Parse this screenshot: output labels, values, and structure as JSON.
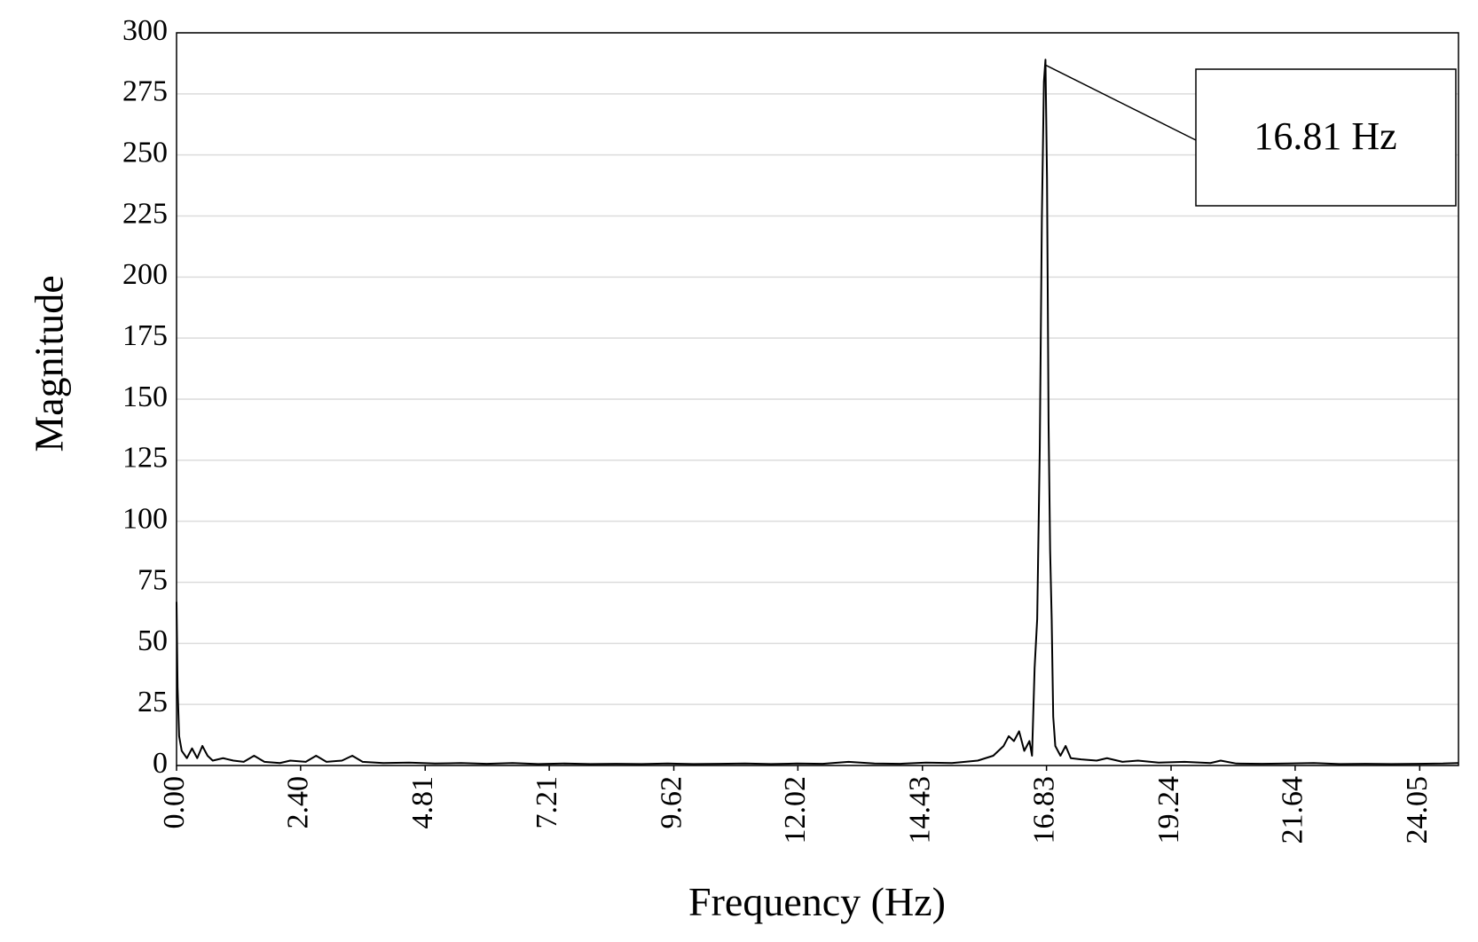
{
  "chart_data": {
    "type": "line",
    "x_label": "Frequency (Hz)",
    "y_label": "Magnitude",
    "annotation": "16.81 Hz",
    "grid": true,
    "xlim": [
      0,
      24.8
    ],
    "ylim": [
      0,
      300
    ],
    "xticks": [
      {
        "value": 0,
        "label": "0.00"
      },
      {
        "value": 2.4,
        "label": "2.40"
      },
      4.81,
      7.21,
      9.62,
      12.02,
      14.43,
      16.83,
      19.24,
      21.64,
      24.05
    ],
    "yticks": [
      0,
      25,
      50,
      75,
      100,
      125,
      150,
      175,
      200,
      225,
      250,
      275,
      300
    ],
    "x": [
      0,
      0.02,
      0.05,
      0.1,
      0.2,
      0.3,
      0.4,
      0.5,
      0.6,
      0.7,
      0.9,
      1.1,
      1.3,
      1.5,
      1.7,
      2.0,
      2.2,
      2.5,
      2.7,
      2.9,
      3.2,
      3.4,
      3.6,
      4.0,
      4.5,
      5.0,
      5.5,
      6.0,
      6.5,
      7.0,
      7.5,
      8.0,
      8.5,
      9.0,
      9.5,
      10.0,
      10.5,
      11.0,
      11.5,
      12.0,
      12.5,
      13.0,
      13.5,
      14.0,
      14.5,
      15.0,
      15.5,
      15.8,
      16.0,
      16.1,
      16.2,
      16.3,
      16.4,
      16.5,
      16.55,
      16.6,
      16.65,
      16.7,
      16.74,
      16.78,
      16.81,
      16.84,
      16.87,
      16.9,
      16.93,
      16.96,
      17.0,
      17.1,
      17.2,
      17.3,
      17.5,
      17.8,
      18.0,
      18.3,
      18.6,
      19.0,
      19.5,
      20.0,
      20.2,
      20.5,
      21.0,
      21.5,
      22.0,
      22.5,
      23.0,
      23.5,
      24.0,
      24.5,
      24.8
    ],
    "series": [
      {
        "color": "#000000",
        "values": [
          67,
          32,
          12,
          6,
          3,
          7,
          3,
          8,
          4,
          2,
          3,
          2,
          1.5,
          4,
          1.5,
          1,
          2,
          1.5,
          4,
          1.5,
          2,
          4,
          1.5,
          1,
          1.2,
          0.8,
          1,
          0.7,
          1,
          0.6,
          0.8,
          0.6,
          0.7,
          0.6,
          0.8,
          0.6,
          0.7,
          0.8,
          0.6,
          0.8,
          0.7,
          1.5,
          0.8,
          0.7,
          1.2,
          1,
          2,
          4,
          8,
          12,
          10,
          14,
          6,
          10,
          4,
          40,
          60,
          130,
          224,
          280,
          289,
          240,
          140,
          88,
          60,
          20,
          8,
          4,
          8,
          3,
          2.5,
          2,
          3,
          1.5,
          2,
          1.2,
          1.5,
          1,
          2,
          0.8,
          0.7,
          0.8,
          1,
          0.6,
          0.7,
          0.6,
          0.7,
          0.8,
          1
        ]
      }
    ]
  }
}
